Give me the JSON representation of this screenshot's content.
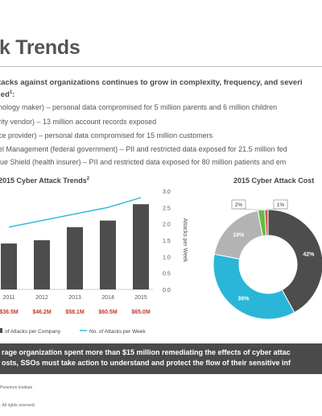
{
  "slide": {
    "title": "k Trends",
    "intro_line1": "tacks against organizations continues to grow in complexity, frequency, and severi",
    "intro_line2": "led",
    "intro_sup": "1",
    "intro_colon": ":",
    "breaches": [
      "nology maker) – personal data compromised for 5 million parents and 6 million children",
      "rity vendor) – 13 million account records exposed",
      "ce provider) – personal data compromised for 15 million customers",
      "el Management (federal government) – PII and restricted data exposed for 21.5 million fed",
      "lue Shield (health insurer) – PII and restricted data exposed for 80 million patients and em"
    ],
    "summary_line1": "rage organization spent more than $15 million remediating the effects of cyber attac",
    "summary_line2": "osts, SSOs must take action to understand and protect the flow of their sensitive inf",
    "footer_source": "Ponemon Institute",
    "footer_rights": ". All rights reserved."
  },
  "colors": {
    "bar": "#4d4d4d",
    "line": "#29b6d8",
    "cost_label": "#c0392b",
    "donut_dark": "#4d4d4d",
    "donut_blue": "#29b6d8",
    "donut_grey": "#b3b3b3",
    "donut_green": "#66bb44",
    "donut_red": "#d9534f",
    "summary_bg": "#4a4a4a"
  },
  "chart_data": [
    {
      "type": "bar",
      "title": "2015 Cyber Attack Trends",
      "title_sup": "2",
      "categories": [
        "2011",
        "2012",
        "2013",
        "2014",
        "2015"
      ],
      "cost_labels": [
        "$36.5M",
        "$46.2M",
        "$58.1M",
        "$60.5M",
        "$65.0M"
      ],
      "series": [
        {
          "name": "of Attacks per Company",
          "kind": "bar",
          "values": [
            1.4,
            1.5,
            1.9,
            2.1,
            2.6
          ]
        },
        {
          "name": "No. of Attacks per Week",
          "kind": "line",
          "values": [
            1.9,
            2.1,
            2.3,
            2.5,
            2.8
          ]
        }
      ],
      "y2label": "Attacks per Week",
      "y2_ticks": [
        "3.0",
        "2.5",
        "2.0",
        "1.5",
        "1.0",
        "0.5",
        "0.0"
      ],
      "y2lim": [
        0,
        3
      ]
    },
    {
      "type": "pie",
      "title": "2015 Cyber Attack Cost",
      "slices": [
        {
          "label": "42%",
          "value": 42,
          "color": "#4d4d4d"
        },
        {
          "label": "36%",
          "value": 36,
          "color": "#29b6d8"
        },
        {
          "label": "19%",
          "value": 19,
          "color": "#b3b3b3"
        },
        {
          "label": "2%",
          "value": 2,
          "color": "#66bb44"
        },
        {
          "label": "1%",
          "value": 1,
          "color": "#d9534f"
        }
      ]
    }
  ]
}
